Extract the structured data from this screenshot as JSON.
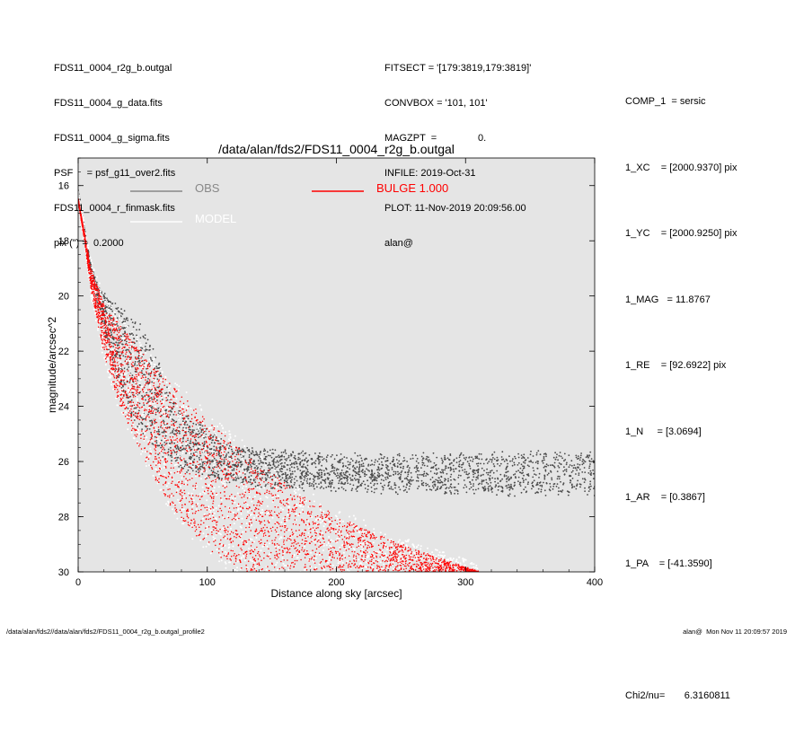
{
  "header_left": [
    "FDS11_0004_r2g_b.outgal",
    "FDS11_0004_g_data.fits",
    "FDS11_0004_g_sigma.fits",
    "PSF     = psf_g11_over2.fits",
    "FDS11_0004_r_finmask.fits",
    "pix (\") =  0.2000"
  ],
  "header_mid": [
    "FITSECT = '[179:3819,179:3819]'",
    "CONVBOX = '101, 101'",
    "MAGZPT  =               0.",
    "INFILE: 2019-Oct-31",
    "PLOT: 11-Nov-2019 20:09:56.00",
    "alan@"
  ],
  "params": [
    "COMP_1  = sersic",
    "1_XC    = [2000.9370] pix",
    "1_YC    = [2000.9250] pix",
    "1_MAG   = 11.8767",
    "1_RE    = [92.6922] pix",
    "1_N     = [3.0694]",
    "1_AR    = [0.3867]",
    "1_PA    = [-41.3590]",
    "",
    "Chi2/nu=       6.3160811"
  ],
  "footer": {
    "left": "/data/alan/fds2//data/alan/fds2/FDS11_0004_r2g_b.outgal_profile2",
    "right": "alan@  Mon Nov 11 20:09:57 2019"
  },
  "chart_data": {
    "type": "scatter",
    "title": "/data/alan/fds2/FDS11_0004_r2g_b.outgal",
    "xlabel": "Distance along sky [arcsec]",
    "ylabel": "magnitude/arcsec^2",
    "xlim": [
      0,
      400
    ],
    "ylim": [
      30,
      15
    ],
    "y_inverted": true,
    "xticks": [
      0,
      100,
      200,
      300,
      400
    ],
    "yticks": [
      16,
      18,
      20,
      22,
      24,
      26,
      28,
      30
    ],
    "background": "#e5e5e5",
    "legend": [
      {
        "name": "OBS",
        "color": "#888888"
      },
      {
        "name": "BULGE  1.000",
        "color": "#ff0000"
      },
      {
        "name": "MODEL",
        "color": "#ffffff"
      }
    ],
    "series": [
      {
        "name": "OBS",
        "color": "#4a4a4a",
        "envelope_inner": [
          [
            0,
            16.3
          ],
          [
            10,
            19.2
          ],
          [
            20,
            21.3
          ],
          [
            30,
            23.0
          ],
          [
            40,
            24.3
          ],
          [
            60,
            25.6
          ],
          [
            80,
            26.3
          ],
          [
            100,
            26.6
          ],
          [
            150,
            26.9
          ],
          [
            250,
            27.1
          ],
          [
            400,
            27.2
          ]
        ],
        "envelope_outer": [
          [
            0,
            16.3
          ],
          [
            10,
            19.0
          ],
          [
            17,
            19.8
          ],
          [
            30,
            20.4
          ],
          [
            45,
            20.9
          ],
          [
            52,
            21.3
          ],
          [
            58,
            22.0
          ],
          [
            65,
            22.8
          ],
          [
            80,
            24.2
          ],
          [
            120,
            25.5
          ],
          [
            200,
            25.8
          ],
          [
            400,
            25.7
          ]
        ]
      },
      {
        "name": "BULGE  1.000",
        "color": "#ff0000",
        "envelope_inner": [
          [
            0,
            16.5
          ],
          [
            5,
            18.0
          ],
          [
            10,
            19.8
          ],
          [
            20,
            22.1
          ],
          [
            30,
            23.7
          ],
          [
            50,
            25.8
          ],
          [
            70,
            27.5
          ],
          [
            100,
            29.2
          ],
          [
            130,
            30.0
          ]
        ],
        "envelope_outer": [
          [
            0,
            16.5
          ],
          [
            10,
            19.0
          ],
          [
            20,
            20.3
          ],
          [
            40,
            21.5
          ],
          [
            60,
            22.6
          ],
          [
            80,
            23.6
          ],
          [
            100,
            24.5
          ],
          [
            150,
            26.4
          ],
          [
            200,
            28.0
          ],
          [
            250,
            29.0
          ],
          [
            310,
            30.0
          ]
        ]
      },
      {
        "name": "MODEL",
        "color": "#ffffff",
        "envelope_inner": [
          [
            0,
            16.5
          ],
          [
            5,
            18.0
          ],
          [
            10,
            19.8
          ],
          [
            20,
            22.1
          ],
          [
            30,
            23.7
          ],
          [
            50,
            25.8
          ],
          [
            70,
            27.5
          ],
          [
            100,
            29.2
          ],
          [
            130,
            30.0
          ]
        ],
        "envelope_outer": [
          [
            0,
            16.5
          ],
          [
            10,
            19.0
          ],
          [
            20,
            20.3
          ],
          [
            40,
            21.5
          ],
          [
            60,
            22.6
          ],
          [
            80,
            23.6
          ],
          [
            100,
            24.5
          ],
          [
            150,
            26.4
          ],
          [
            200,
            28.0
          ],
          [
            250,
            29.0
          ],
          [
            310,
            30.0
          ]
        ]
      }
    ]
  }
}
